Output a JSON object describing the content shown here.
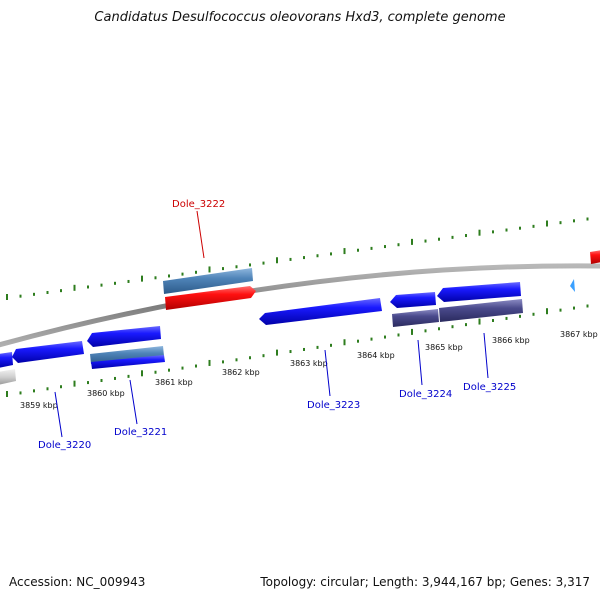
{
  "title": "Candidatus Desulfococcus oleovorans Hxd3, complete genome",
  "footer": {
    "accession_label": "Accession:",
    "accession": "NC_009943",
    "topology_label": "Topology:",
    "topology": "circular",
    "length_label": "Length:",
    "length": "3,944,167 bp",
    "genes_label": "Genes:",
    "genes": "3,317"
  },
  "scale_labels": [
    "3859 kbp",
    "3860 kbp",
    "3861 kbp",
    "3862 kbp",
    "3863 kbp",
    "3864 kbp",
    "3865 kbp",
    "3866 kbp",
    "3867 kbp"
  ],
  "genes": [
    {
      "id": "Dole_3220",
      "color": "#0000cc"
    },
    {
      "id": "Dole_3221",
      "color": "#0000cc"
    },
    {
      "id": "Dole_3222",
      "color": "#cc0000"
    },
    {
      "id": "Dole_3223",
      "color": "#0000cc"
    },
    {
      "id": "Dole_3224",
      "color": "#0000cc"
    },
    {
      "id": "Dole_3225",
      "color": "#0000cc"
    }
  ],
  "colors": {
    "backbone": "#8a8a8a",
    "tick": "#2e7d1e",
    "cds_forward": "#0000ee",
    "cds_reverse": "#ee0000",
    "cds_steel": "#4f84b8",
    "cds_purple": "#4a4a8c",
    "leader": "#0000cc",
    "highlight_leader": "#cc0000"
  }
}
